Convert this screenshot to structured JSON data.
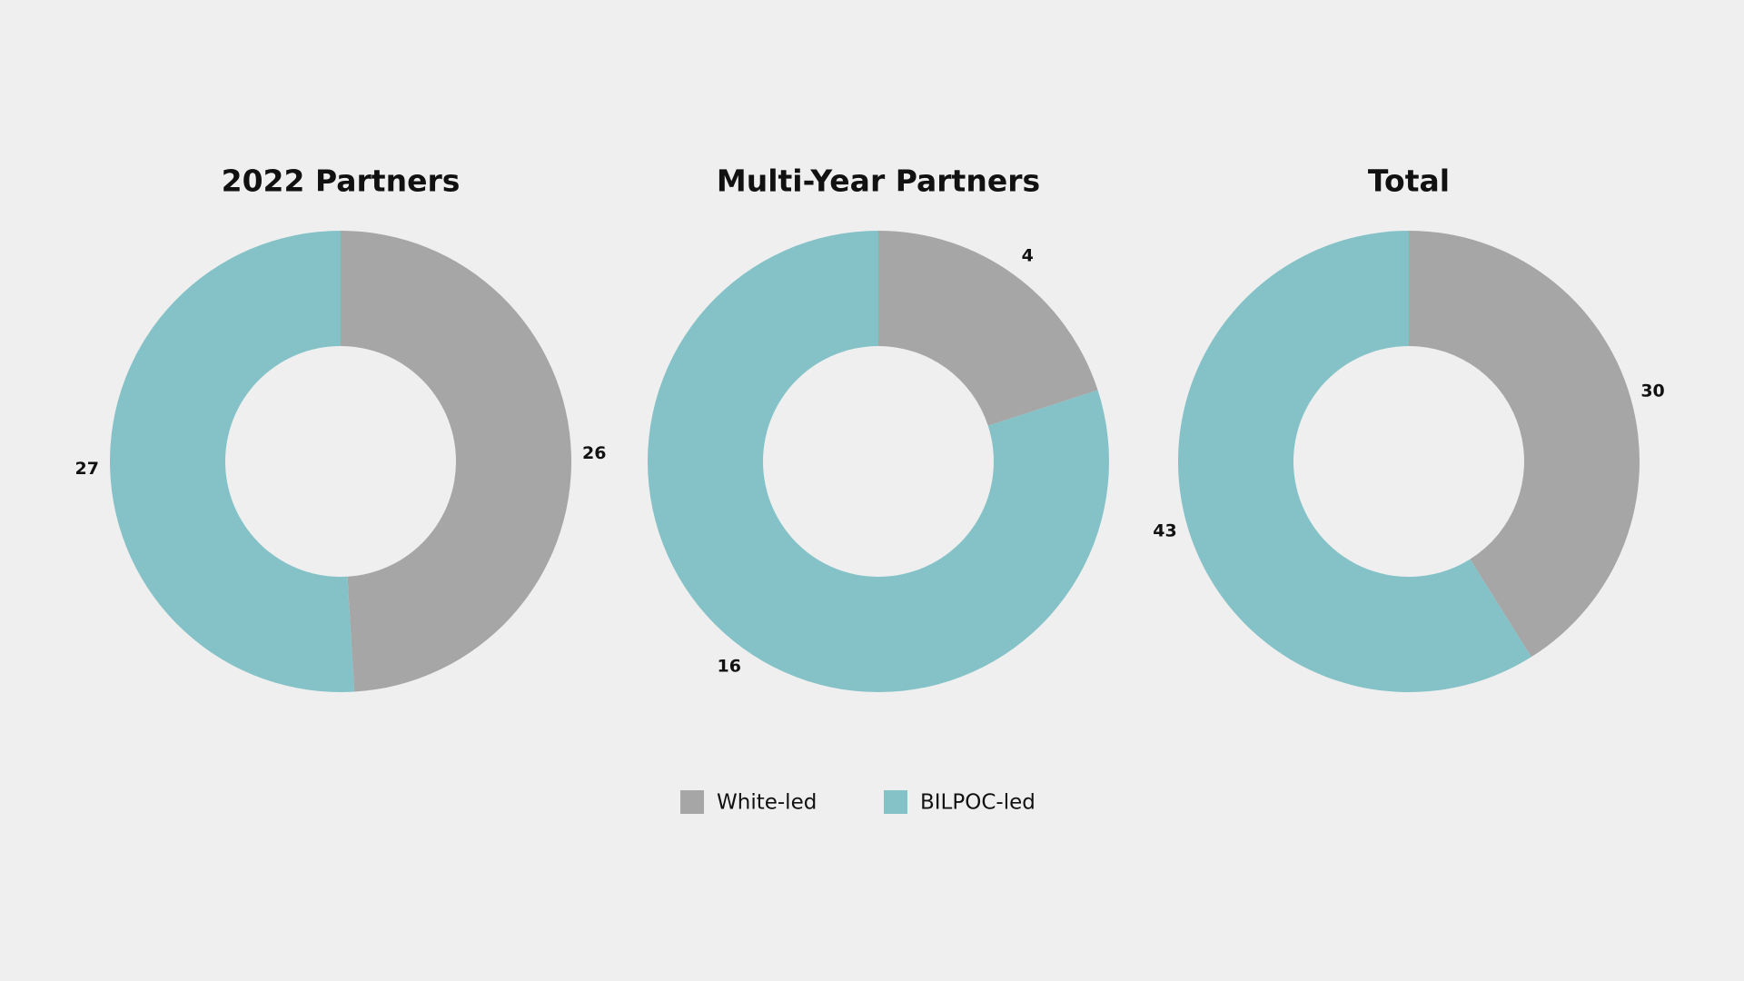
{
  "chart_data": [
    {
      "type": "pie",
      "donut": true,
      "title": "2022 Partners",
      "values": [
        26,
        27
      ]
    },
    {
      "type": "pie",
      "donut": true,
      "title": "Multi-Year Partners",
      "values": [
        4,
        16
      ]
    },
    {
      "type": "pie",
      "donut": true,
      "title": "Total",
      "values": [
        30,
        43
      ]
    }
  ],
  "legend": {
    "labels": [
      "White-led",
      "BILPOC-led"
    ],
    "colors": [
      "#a6a6a6",
      "#84c2c8"
    ]
  }
}
